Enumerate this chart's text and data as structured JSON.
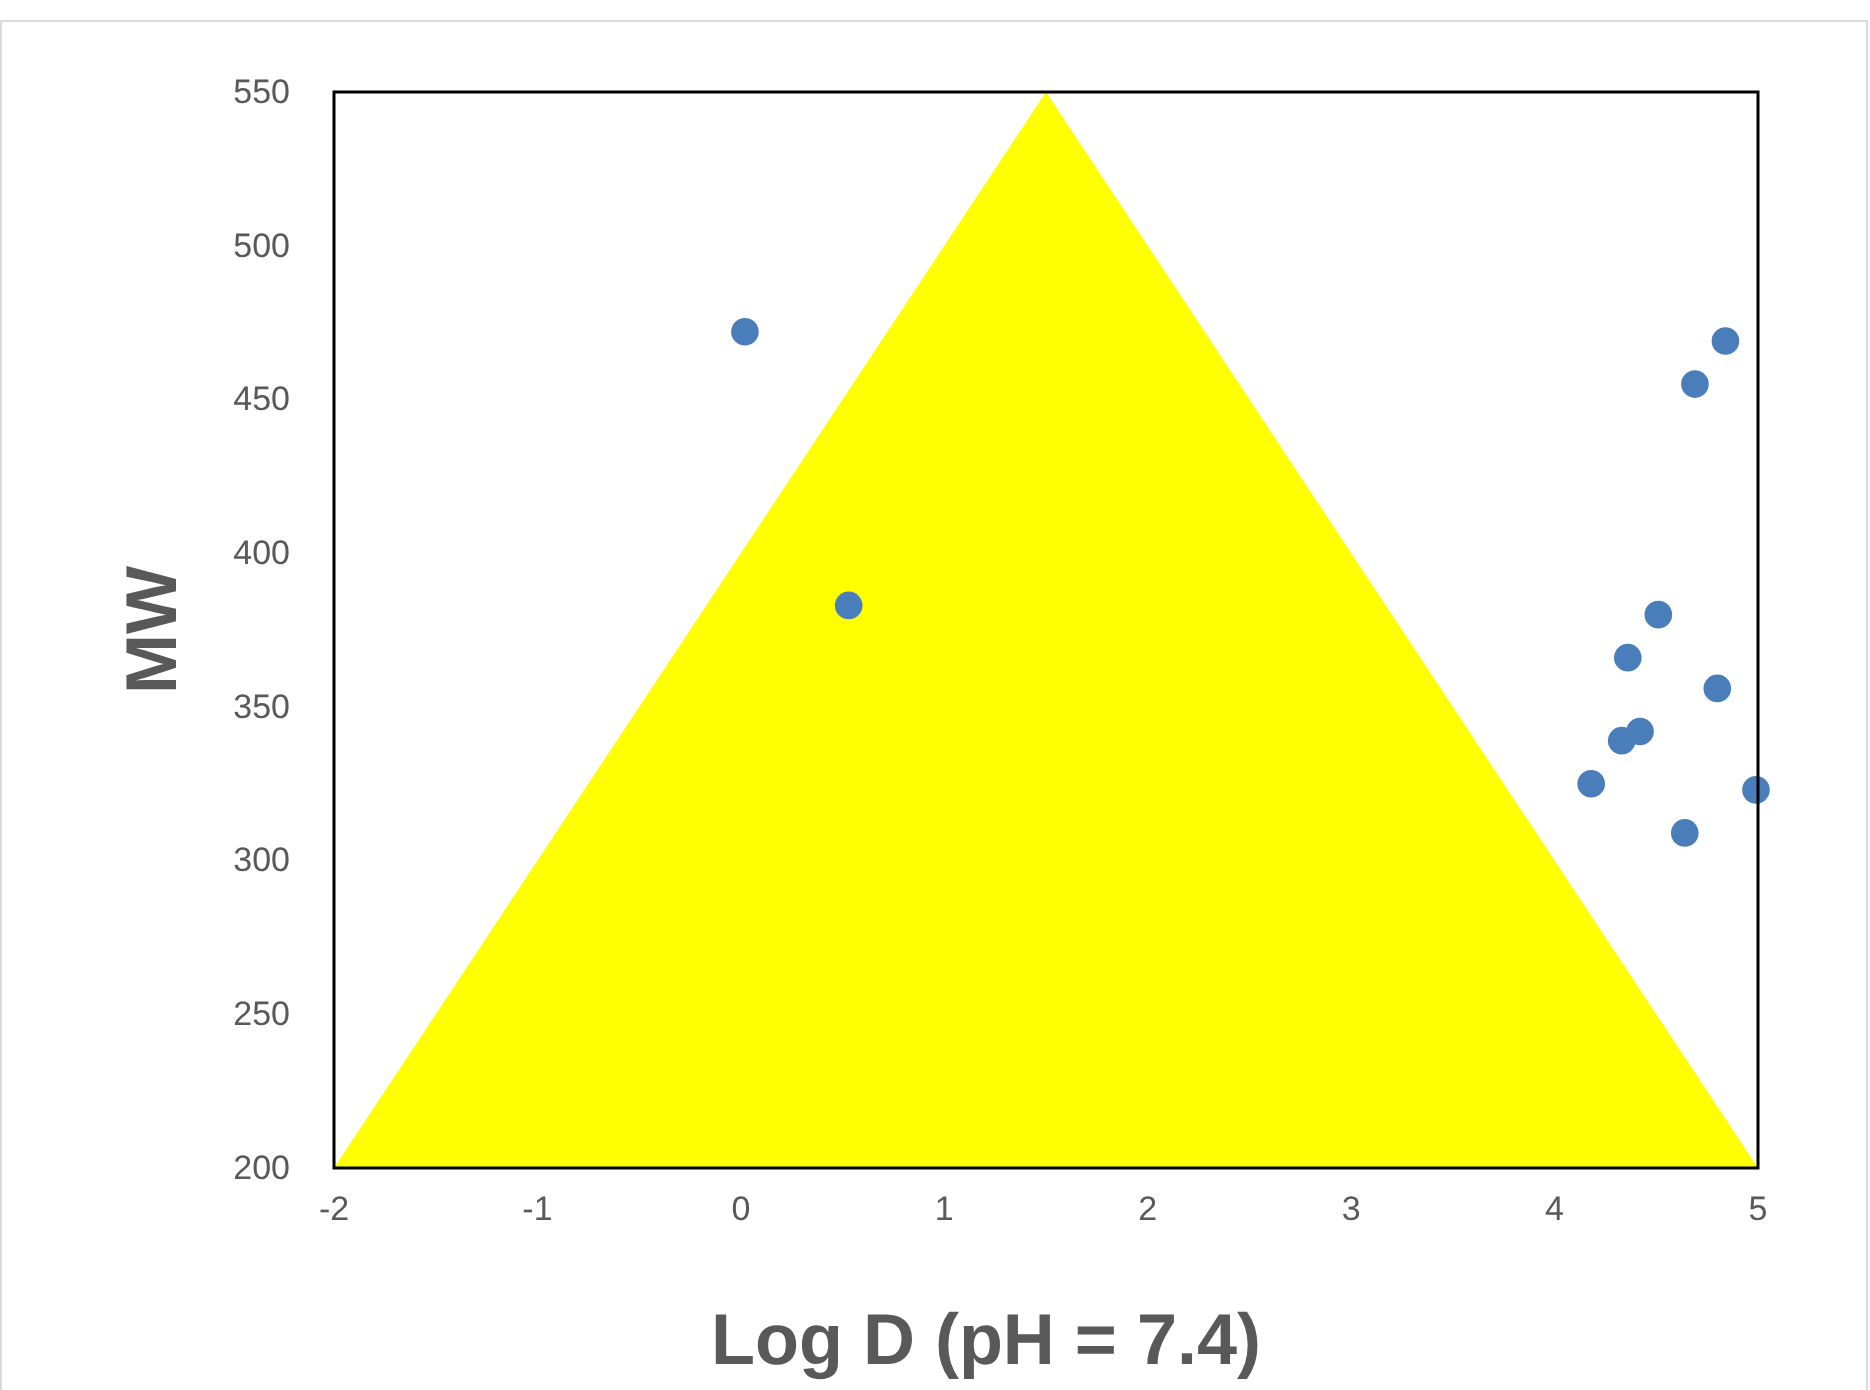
{
  "chart_data": {
    "type": "scatter",
    "xlabel": "Log D (pH = 7.4)",
    "ylabel": "MW",
    "xlim": [
      -2,
      5
    ],
    "xticks": [
      -2,
      -1,
      0,
      1,
      2,
      3,
      4,
      5
    ],
    "ylim": [
      200,
      550
    ],
    "yticks": [
      200,
      250,
      300,
      350,
      400,
      450,
      500,
      550
    ],
    "grid": false,
    "series": [
      {
        "type": "area",
        "color": "#ffff00",
        "x": [
          -2,
          1.5,
          5
        ],
        "values": [
          200,
          550,
          200
        ]
      },
      {
        "marker": "circle",
        "color": "#4a7ebb",
        "x": [
          0.02,
          0.53,
          4.84,
          4.69,
          4.51,
          4.36,
          4.8,
          4.42,
          4.33,
          4.18,
          4.99,
          4.64
        ],
        "values": [
          472,
          383,
          469,
          455,
          380,
          366,
          356,
          342,
          339,
          325,
          323,
          309
        ]
      }
    ]
  }
}
